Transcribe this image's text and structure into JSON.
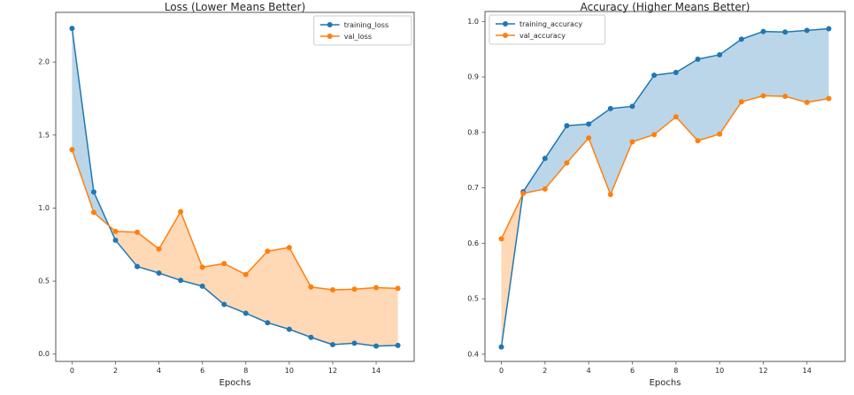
{
  "figure": {
    "background_color": "#ffffff",
    "spine_color": "#555555",
    "text_color": "#262626"
  },
  "chart_data": [
    {
      "type": "line",
      "title": "Loss (Lower Means Better)",
      "xlabel": "Epochs",
      "ylabel": "",
      "x": [
        0,
        1,
        2,
        3,
        4,
        5,
        6,
        7,
        8,
        9,
        10,
        11,
        12,
        13,
        14,
        15
      ],
      "series": [
        {
          "name": "training_loss",
          "color": "#1f77b4",
          "values": [
            2.23,
            1.11,
            0.78,
            0.6,
            0.555,
            0.505,
            0.465,
            0.34,
            0.28,
            0.215,
            0.17,
            0.115,
            0.065,
            0.075,
            0.055,
            0.06
          ]
        },
        {
          "name": "val_loss",
          "color": "#ff7f0e",
          "values": [
            1.4,
            0.97,
            0.84,
            0.835,
            0.72,
            0.975,
            0.595,
            0.62,
            0.545,
            0.705,
            0.73,
            0.46,
            0.44,
            0.445,
            0.455,
            0.45
          ]
        }
      ],
      "fill_between": {
        "enabled": true,
        "alpha": 0.3,
        "rule": "color-of-upper-series"
      },
      "xlim": [
        -0.75,
        15.75
      ],
      "ylim": [
        -0.05,
        2.34
      ],
      "xticks": [
        {
          "v": 0,
          "label": "0"
        },
        {
          "v": 2,
          "label": "2"
        },
        {
          "v": 4,
          "label": "4"
        },
        {
          "v": 6,
          "label": "6"
        },
        {
          "v": 8,
          "label": "8"
        },
        {
          "v": 10,
          "label": "10"
        },
        {
          "v": 12,
          "label": "12"
        },
        {
          "v": 14,
          "label": "14"
        }
      ],
      "yticks": [
        {
          "v": 0.0,
          "label": "0.0"
        },
        {
          "v": 0.5,
          "label": "0.5"
        },
        {
          "v": 1.0,
          "label": "1.0"
        },
        {
          "v": 1.5,
          "label": "1.5"
        },
        {
          "v": 2.0,
          "label": "2.0"
        }
      ],
      "legend_pos": "upper right",
      "grid": false,
      "marker": "circle"
    },
    {
      "type": "line",
      "title": "Accuracy (Higher Means Better)",
      "xlabel": "Epochs",
      "ylabel": "",
      "x": [
        0,
        1,
        2,
        3,
        4,
        5,
        6,
        7,
        8,
        9,
        10,
        11,
        12,
        13,
        14,
        15
      ],
      "series": [
        {
          "name": "training_accuracy",
          "color": "#1f77b4",
          "values": [
            0.413,
            0.693,
            0.753,
            0.812,
            0.815,
            0.843,
            0.847,
            0.903,
            0.908,
            0.932,
            0.94,
            0.968,
            0.982,
            0.981,
            0.984,
            0.987
          ]
        },
        {
          "name": "val_accuracy",
          "color": "#ff7f0e",
          "values": [
            0.608,
            0.69,
            0.698,
            0.745,
            0.79,
            0.688,
            0.783,
            0.796,
            0.828,
            0.785,
            0.797,
            0.855,
            0.866,
            0.865,
            0.854,
            0.861
          ]
        }
      ],
      "fill_between": {
        "enabled": true,
        "alpha": 0.3,
        "rule": "color-of-upper-series"
      },
      "xlim": [
        -0.75,
        15.75
      ],
      "ylim": [
        0.387,
        1.018
      ],
      "xticks": [
        {
          "v": 0,
          "label": "0"
        },
        {
          "v": 2,
          "label": "2"
        },
        {
          "v": 4,
          "label": "4"
        },
        {
          "v": 6,
          "label": "6"
        },
        {
          "v": 8,
          "label": "8"
        },
        {
          "v": 10,
          "label": "10"
        },
        {
          "v": 12,
          "label": "12"
        },
        {
          "v": 14,
          "label": "14"
        }
      ],
      "yticks": [
        {
          "v": 0.4,
          "label": "0.4"
        },
        {
          "v": 0.5,
          "label": "0.5"
        },
        {
          "v": 0.6,
          "label": "0.6"
        },
        {
          "v": 0.7,
          "label": "0.7"
        },
        {
          "v": 0.8,
          "label": "0.8"
        },
        {
          "v": 0.9,
          "label": "0.9"
        },
        {
          "v": 1.0,
          "label": "1.0"
        }
      ],
      "legend_pos": "upper left",
      "grid": false,
      "marker": "circle"
    }
  ]
}
